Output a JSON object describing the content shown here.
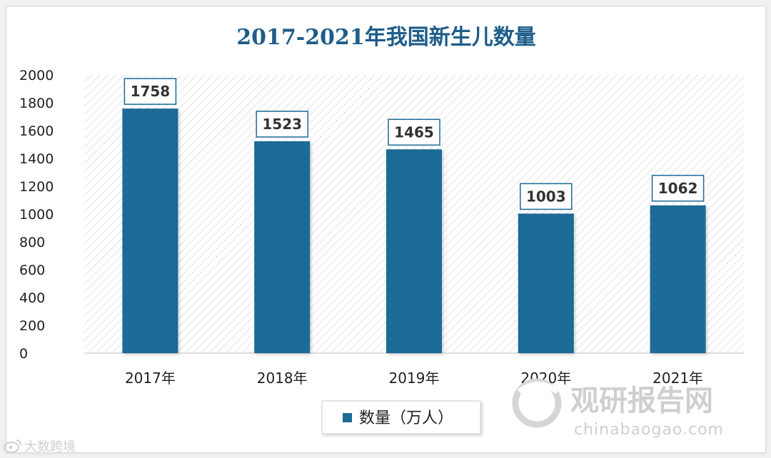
{
  "chart_data": {
    "type": "bar",
    "title": "2017-2021年我国新生儿数量",
    "categories": [
      "2017年",
      "2018年",
      "2019年",
      "2020年",
      "2021年"
    ],
    "series": [
      {
        "name": "数量（万人）",
        "values": [
          1758,
          1523,
          1465,
          1003,
          1062
        ]
      }
    ],
    "data_labels": [
      "1758",
      "1523",
      "1465",
      "1003",
      "1062"
    ],
    "ylim": [
      0,
      2000
    ],
    "yticks": [
      0,
      200,
      400,
      600,
      800,
      1000,
      1200,
      1400,
      1600,
      1800,
      2000
    ],
    "grid": false,
    "legend_position": "bottom",
    "colors": {
      "bar": "#1a6b96",
      "title": "#1f5d8a",
      "label_border": "#1a6b96"
    }
  },
  "watermarks": {
    "main": "观研报告网",
    "sub": "chinabaogao.com",
    "corner": "大数跨境"
  }
}
